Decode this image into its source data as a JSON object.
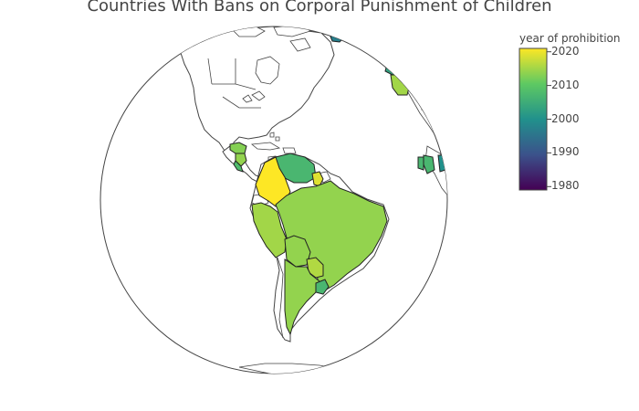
{
  "title": "Countries With Bans on Corporal Punishment of Children",
  "colorbar": {
    "title": "year of prohibition",
    "ticks": [
      "2020",
      "2010",
      "2000",
      "1990",
      "1980"
    ],
    "min": 1979,
    "max": 2021,
    "colorscale": [
      "#440154",
      "#3b528b",
      "#21918c",
      "#5ec962",
      "#fde725"
    ]
  },
  "map": {
    "projection": "orthographic",
    "land_color": "#ffffff",
    "border_color": "#444444"
  },
  "regions": [
    {
      "name": "Colombia",
      "year": 2021
    },
    {
      "name": "Venezuela",
      "year": 2007
    },
    {
      "name": "Guyana",
      "year": 2019
    },
    {
      "name": "Peru",
      "year": 2015
    },
    {
      "name": "Brazil",
      "year": 2014
    },
    {
      "name": "Bolivia",
      "year": 2014
    },
    {
      "name": "Paraguay",
      "year": 2016
    },
    {
      "name": "Argentina",
      "year": 2014
    },
    {
      "name": "Uruguay",
      "year": 2007
    },
    {
      "name": "Honduras",
      "year": 2013
    },
    {
      "name": "Nicaragua",
      "year": 2014
    },
    {
      "name": "Costa Rica",
      "year": 2008
    },
    {
      "name": "Greenland",
      "year": 1997
    },
    {
      "name": "Iceland",
      "year": 2003
    },
    {
      "name": "Ireland",
      "year": 2015
    },
    {
      "name": "France",
      "year": 2019
    },
    {
      "name": "Spain",
      "year": 2007
    },
    {
      "name": "Portugal",
      "year": 2007
    },
    {
      "name": "Germany",
      "year": 2000
    }
  ]
}
